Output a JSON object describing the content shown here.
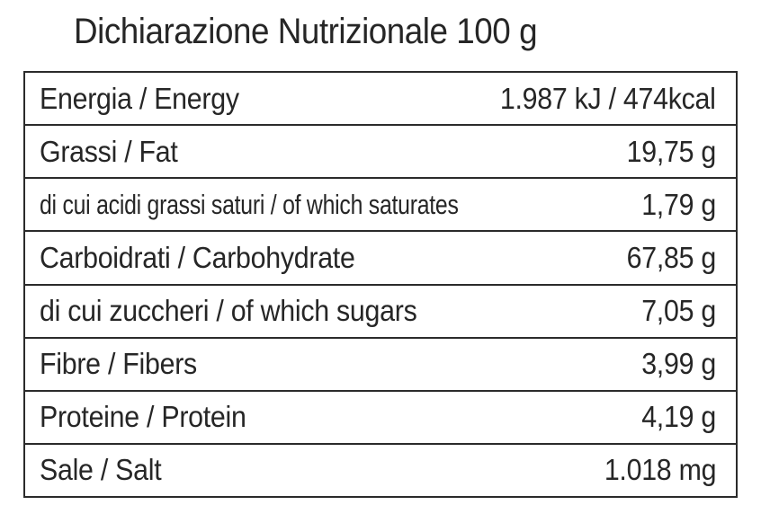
{
  "title": "Dichiarazione Nutrizionale 100 g",
  "rows": [
    {
      "label": "Energia / Energy",
      "value": "1.987 kJ / 474kcal"
    },
    {
      "label": "Grassi / Fat",
      "value": "19,75 g"
    },
    {
      "label": "di cui acidi grassi saturi / of which saturates",
      "value": "1,79 g"
    },
    {
      "label": "Carboidrati / Carbohydrate",
      "value": "67,85 g"
    },
    {
      "label": "di cui zuccheri / of which sugars",
      "value": "7,05 g"
    },
    {
      "label": "Fibre / Fibers",
      "value": "3,99 g"
    },
    {
      "label": "Proteine / Protein",
      "value": "4,19 g"
    },
    {
      "label": "Sale / Salt",
      "value": "1.018 mg"
    }
  ]
}
